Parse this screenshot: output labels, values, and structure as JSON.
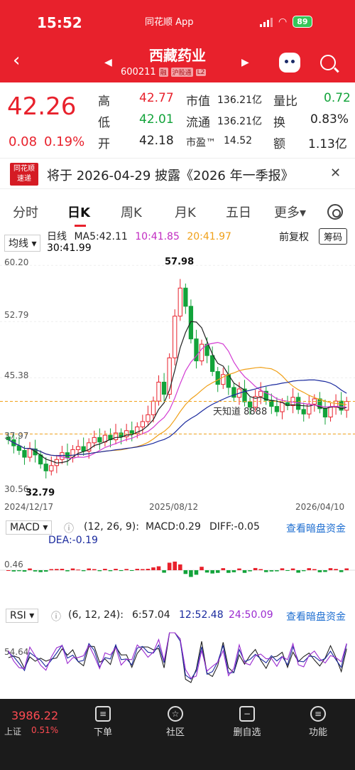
{
  "status": {
    "time": "15:52",
    "app": "同花顺 App",
    "battery": "89"
  },
  "header": {
    "name": "西藏药业",
    "code": "600211",
    "tags": [
      "融",
      "沪股通",
      "L2"
    ]
  },
  "quote": {
    "price": "42.26",
    "change": "0.08",
    "change_pct": "0.19%",
    "high_label": "高",
    "high": "42.77",
    "low_label": "低",
    "low": "42.01",
    "open_label": "开",
    "open": "42.18",
    "mcap_label": "市值",
    "mcap": "136.21亿",
    "float_label": "流通",
    "float": "136.21亿",
    "pe_label": "市盈™",
    "pe": "14.52",
    "vr_label": "量比",
    "vr": "0.72",
    "turn_label": "换",
    "turn": "0.83%",
    "amt_label": "额",
    "amt": "1.13亿"
  },
  "news": {
    "logo_line1": "同花顺",
    "logo_line2": "速递",
    "text": "将于 2026-04-29 披露《2026 年一季报》",
    "close": "✕"
  },
  "tabs": [
    {
      "label": "分时",
      "active": false
    },
    {
      "label": "日K",
      "active": true
    },
    {
      "label": "周K",
      "active": false
    },
    {
      "label": "月K",
      "active": false
    },
    {
      "label": "五日",
      "active": false
    },
    {
      "label": "更多▾",
      "active": false
    }
  ],
  "chart_header": {
    "indicator": "均线 ▾",
    "period": "日线",
    "ma5": "MA5:42.11",
    "ma10": "10:41.85",
    "ma20": "20:41.97",
    "ma30": "30:41.99",
    "adjust": "前复权",
    "chips": "筹码"
  },
  "chart_data": {
    "type": "candlestick",
    "y_ticks": [
      "60.20",
      "52.79",
      "45.38",
      "37.97",
      "30.56"
    ],
    "x_ticks": [
      "2024/12/17",
      "2025/08/12",
      "2026/04/10"
    ],
    "max_label": "57.98",
    "min_label": "32.79",
    "annotation": "天知道 8888",
    "ma_colors": {
      "ma5": "#222222",
      "ma10": "#d23ad2",
      "ma20": "#f0a018",
      "ma30": "#1a2a9e"
    },
    "closes": [
      37.2,
      36.4,
      35.8,
      34.9,
      36.0,
      35.2,
      34.0,
      33.1,
      33.8,
      34.6,
      35.5,
      34.8,
      35.9,
      36.3,
      35.7,
      36.8,
      37.5,
      36.9,
      37.8,
      37.2,
      38.1,
      37.6,
      38.4,
      38.0,
      38.9,
      39.6,
      40.5,
      42.3,
      44.8,
      43.2,
      48.0,
      53.5,
      57.2,
      54.8,
      50.5,
      47.6,
      49.8,
      48.3,
      46.2,
      44.5,
      45.8,
      44.1,
      42.8,
      43.9,
      42.2,
      41.5,
      42.9,
      43.6,
      42.4,
      41.6,
      40.9,
      42.1,
      41.7,
      42.8,
      41.2,
      40.6,
      41.9,
      42.6,
      41.3,
      40.2,
      41.5,
      42.3,
      41.1,
      42.26
    ]
  },
  "macd": {
    "label": "MACD ▾",
    "params": "(12, 26, 9):",
    "macd": "MACD:0.29",
    "diff": "DIFF:-0.05",
    "dea": "DEA:-0.19",
    "level": "0.46",
    "link": "查看暗盘资金"
  },
  "rsi": {
    "label": "RSI ▾",
    "params": "(6, 12, 24):",
    "r6": "6:57.04",
    "r12": "12:52.48",
    "r24": "24:50.09",
    "level": "54.64",
    "link": "查看暗盘资金"
  },
  "bottom": {
    "index_value": "3986.22",
    "index_name": "上证",
    "index_pct": "0.51%",
    "items": [
      {
        "label": "下单",
        "icon": "order-icon"
      },
      {
        "label": "社区",
        "icon": "community-icon"
      },
      {
        "label": "删自选",
        "icon": "remove-watchlist-icon"
      },
      {
        "label": "功能",
        "icon": "menu-icon"
      }
    ]
  }
}
